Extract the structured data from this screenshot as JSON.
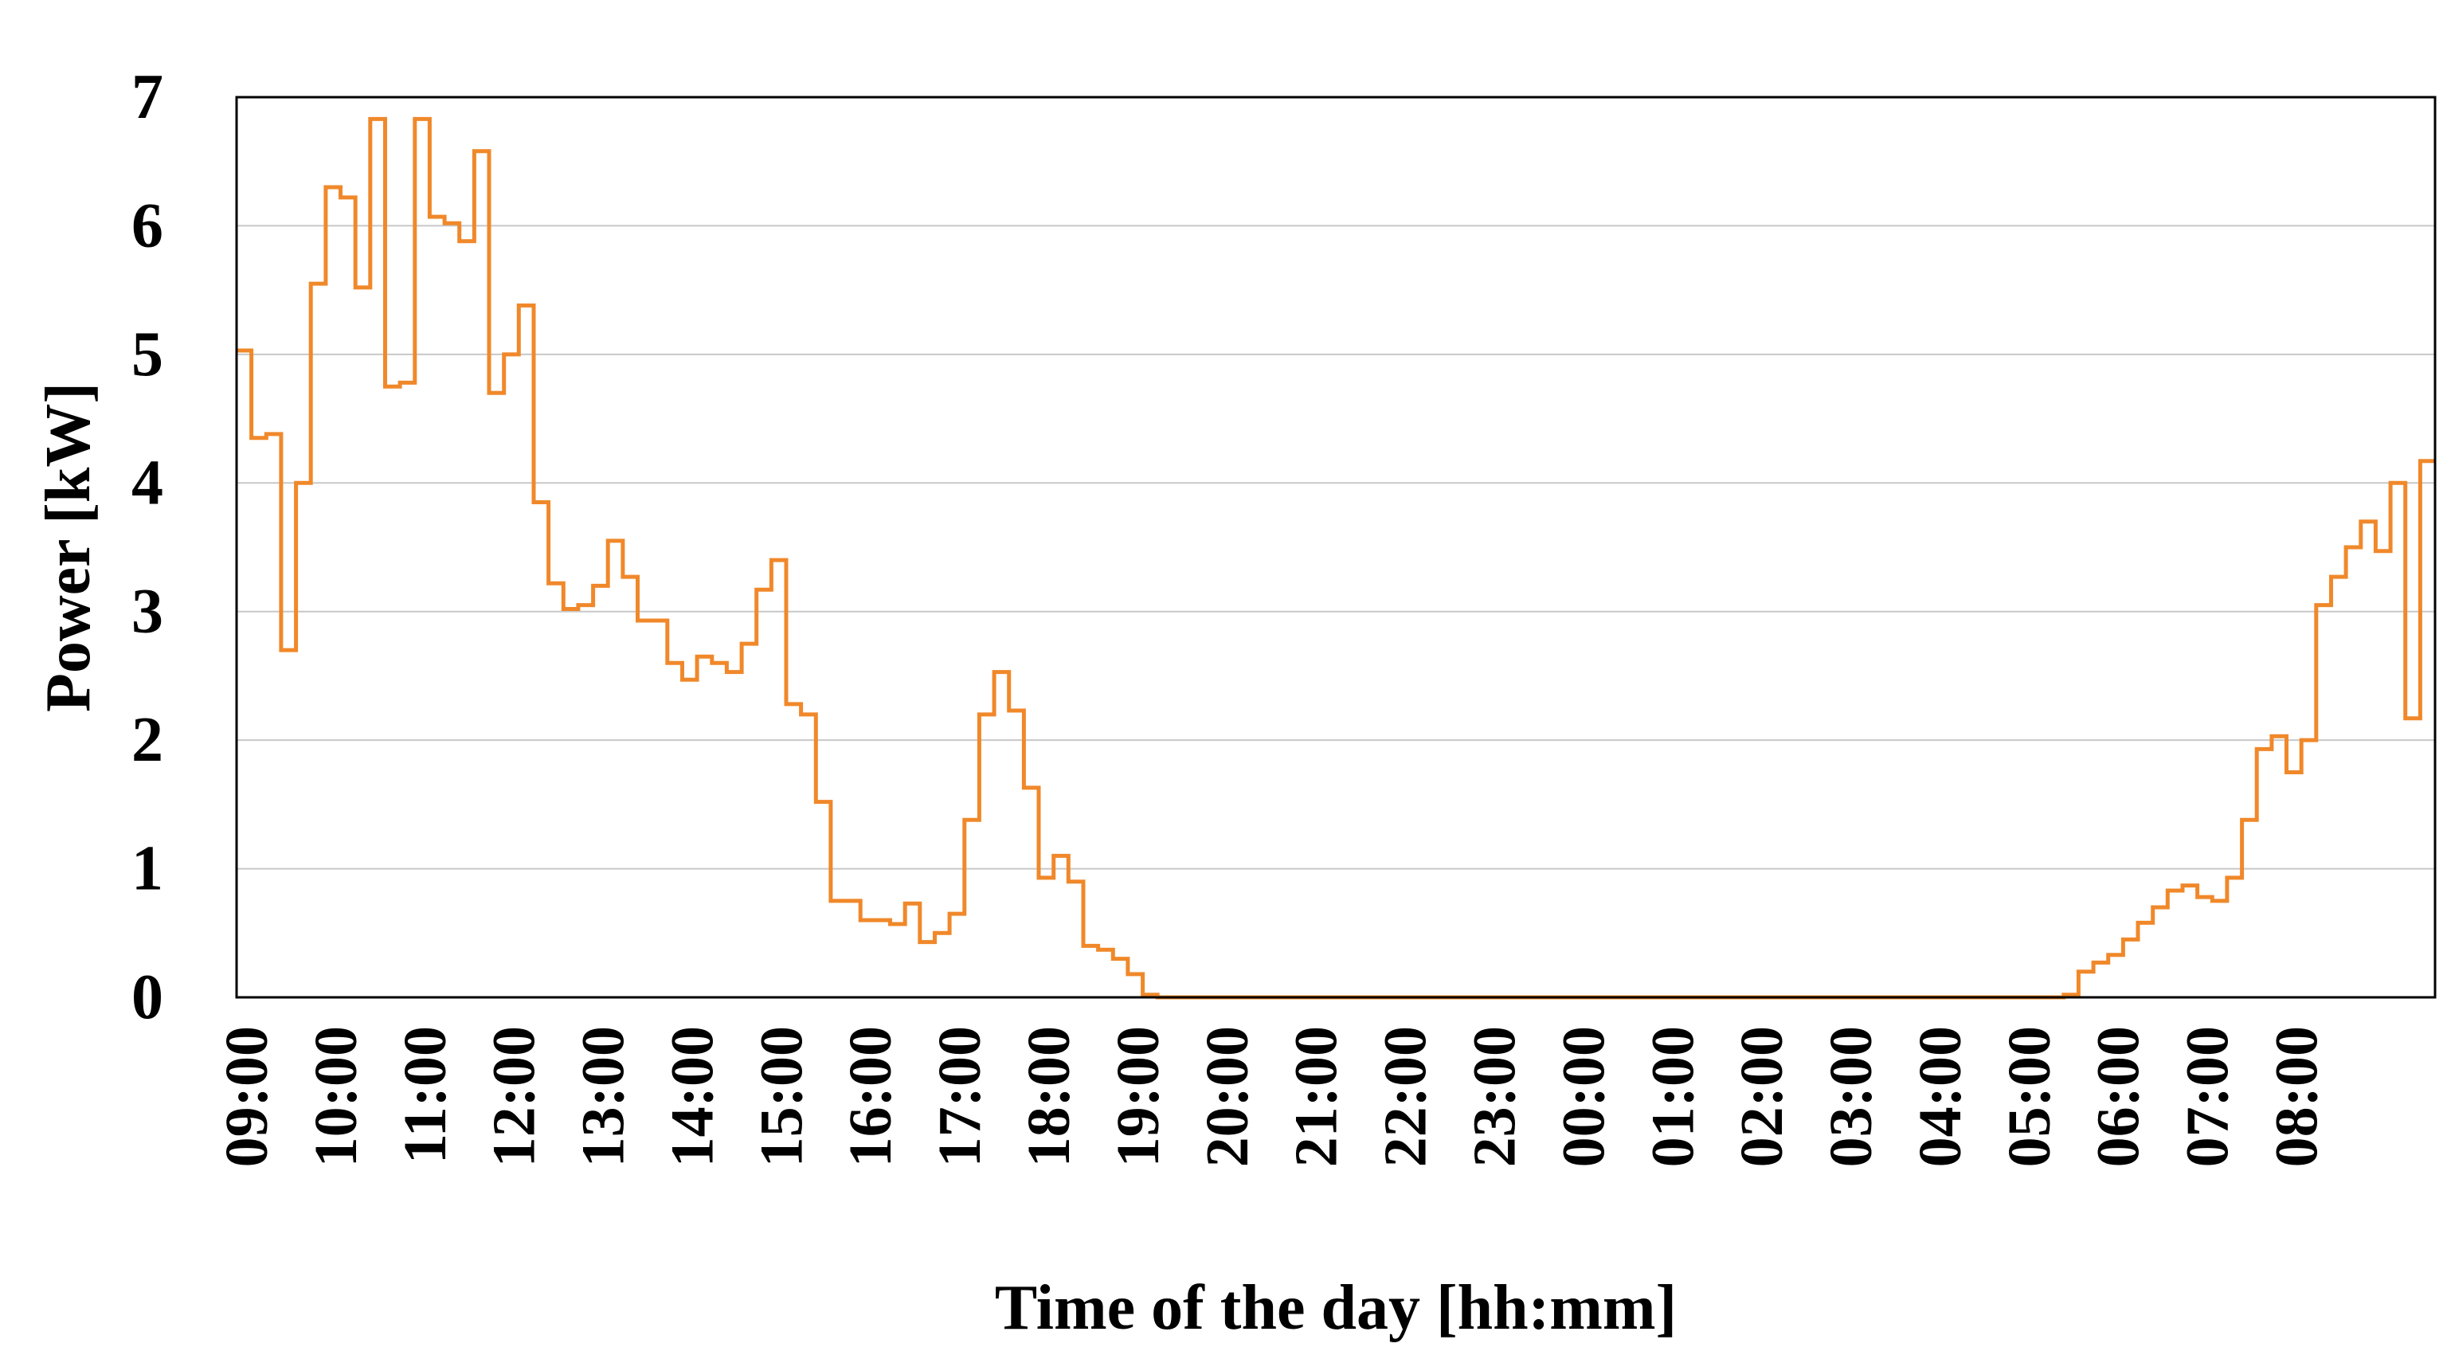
{
  "chart_data": {
    "type": "line",
    "title": "",
    "xlabel": "Time of the day [hh:mm]",
    "ylabel": "Power [kW]",
    "ylim": [
      0,
      7
    ],
    "y_ticks": [
      "0",
      "1",
      "2",
      "3",
      "4",
      "5",
      "6",
      "7"
    ],
    "x_ticks": [
      "09:00",
      "10:00",
      "11:00",
      "12:00",
      "13:00",
      "14:00",
      "15:00",
      "16:00",
      "17:00",
      "18:00",
      "19:00",
      "20:00",
      "21:00",
      "22:00",
      "23:00",
      "00:00",
      "01:00",
      "02:00",
      "03:00",
      "04:00",
      "05:00",
      "06:00",
      "07:00",
      "08:00"
    ],
    "grid": "horizontal",
    "legend": "none",
    "step_minutes": 10,
    "series": [
      {
        "color": "#f0882a",
        "values": [
          5.03,
          4.35,
          4.38,
          2.7,
          4.0,
          5.55,
          6.3,
          6.22,
          5.52,
          6.83,
          4.75,
          4.78,
          6.83,
          6.07,
          6.02,
          5.88,
          6.58,
          4.7,
          5.0,
          5.38,
          3.85,
          3.22,
          3.02,
          3.05,
          3.2,
          3.55,
          3.27,
          2.93,
          2.93,
          2.6,
          2.47,
          2.65,
          2.6,
          2.53,
          2.75,
          3.17,
          3.4,
          2.28,
          2.2,
          1.52,
          0.75,
          0.75,
          0.6,
          0.6,
          0.57,
          0.73,
          0.43,
          0.5,
          0.65,
          1.38,
          2.2,
          2.53,
          2.23,
          1.63,
          0.93,
          1.1,
          0.9,
          0.4,
          0.37,
          0.3,
          0.18,
          0.02,
          0.0,
          0.0,
          0.0,
          0.0,
          0.0,
          0.0,
          0.0,
          0.0,
          0.0,
          0.0,
          0.0,
          0.0,
          0.0,
          0.0,
          0.0,
          0.0,
          0.0,
          0.0,
          0.0,
          0.0,
          0.0,
          0.0,
          0.0,
          0.0,
          0.0,
          0.0,
          0.0,
          0.0,
          0.0,
          0.0,
          0.0,
          0.0,
          0.0,
          0.0,
          0.0,
          0.0,
          0.0,
          0.0,
          0.0,
          0.0,
          0.0,
          0.0,
          0.0,
          0.0,
          0.0,
          0.0,
          0.0,
          0.0,
          0.0,
          0.0,
          0.0,
          0.0,
          0.0,
          0.0,
          0.0,
          0.0,
          0.0,
          0.0,
          0.0,
          0.0,
          0.0,
          0.02,
          0.2,
          0.27,
          0.33,
          0.45,
          0.58,
          0.7,
          0.83,
          0.87,
          0.78,
          0.75,
          0.93,
          1.38,
          1.93,
          2.03,
          1.75,
          2.0,
          3.05,
          3.27,
          3.5,
          3.7,
          3.47,
          4.0,
          2.17,
          4.17
        ]
      }
    ]
  }
}
